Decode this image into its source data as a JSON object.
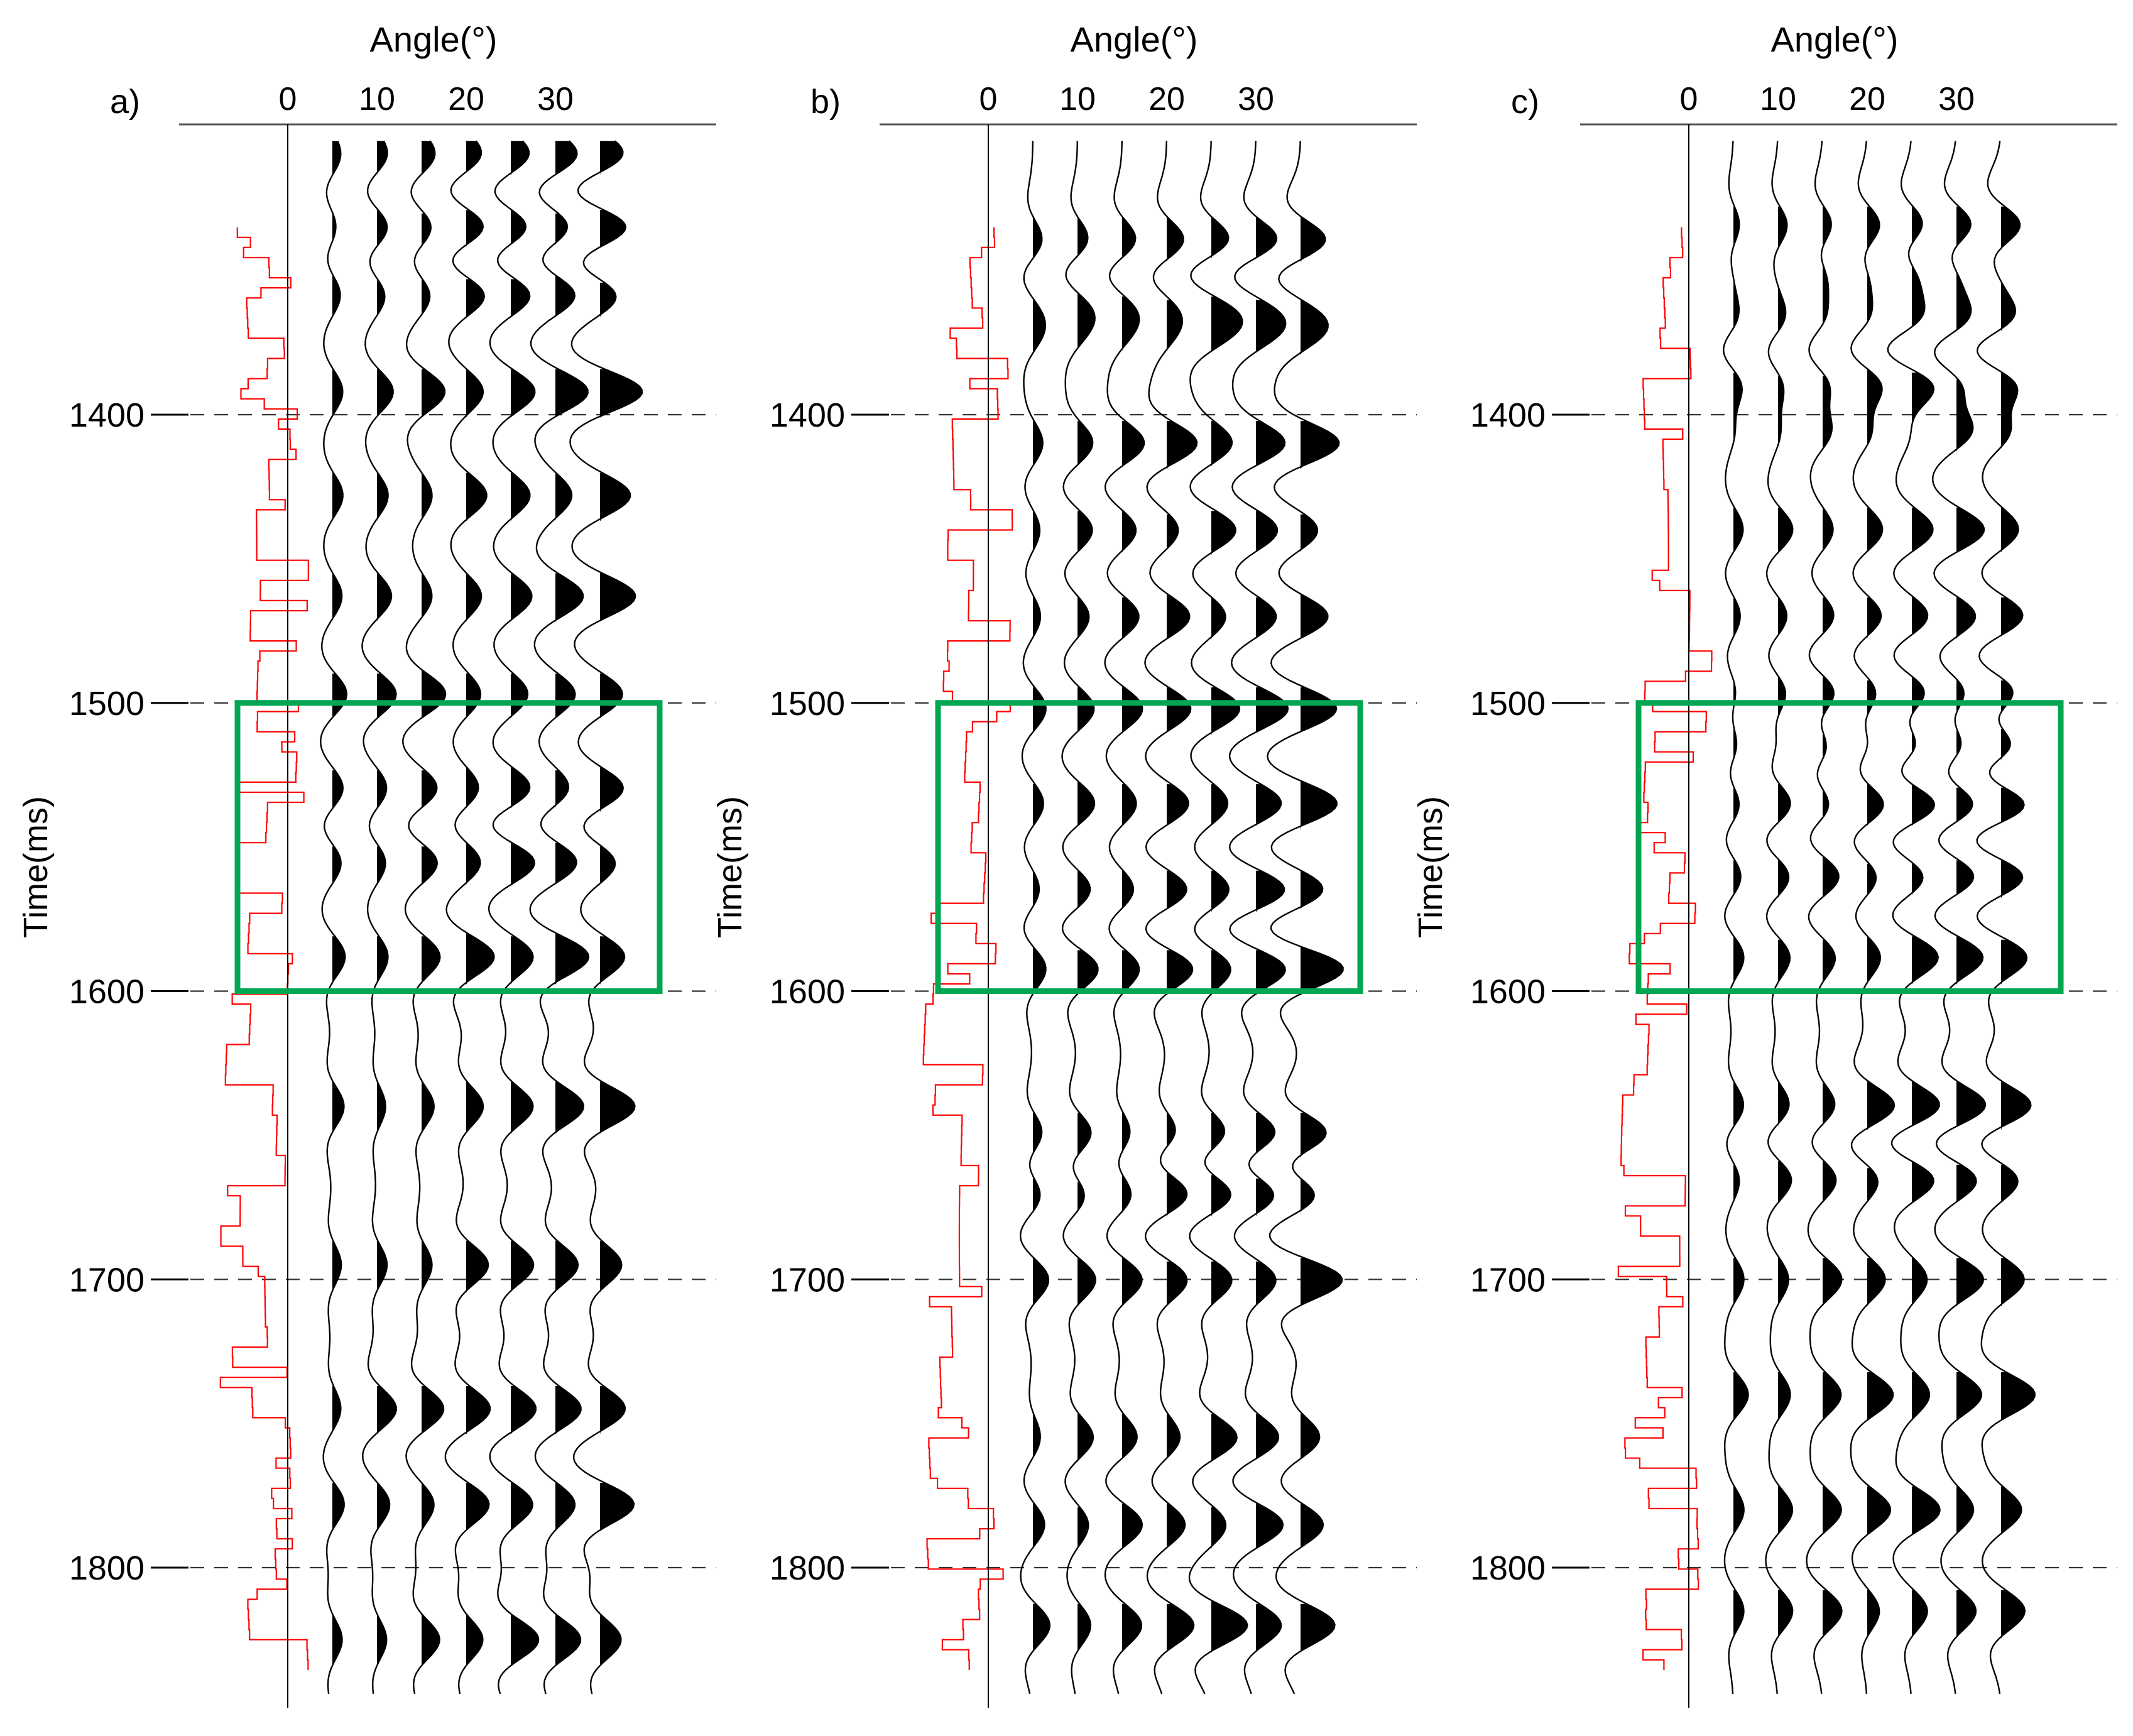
{
  "figure": {
    "panels": [
      {
        "label": "a)",
        "top_title": "Angle(°)",
        "angle_ticks": [
          "0",
          "10",
          "20",
          "30"
        ],
        "y_label": "Time(ms)",
        "time_ticks": [
          "1400",
          "1500",
          "1600",
          "1700",
          "1800"
        ]
      },
      {
        "label": "b)",
        "top_title": "Angle(°)",
        "angle_ticks": [
          "0",
          "10",
          "20",
          "30"
        ],
        "y_label": "Time(ms)",
        "time_ticks": [
          "1400",
          "1500",
          "1600",
          "1700",
          "1800"
        ]
      },
      {
        "label": "c)",
        "top_title": "Angle(°)",
        "angle_ticks": [
          "0",
          "10",
          "20",
          "30"
        ],
        "y_label": "Time(ms)",
        "time_ticks": [
          "1400",
          "1500",
          "1600",
          "1700",
          "1800"
        ]
      }
    ]
  },
  "chart_data": [
    {
      "type": "wiggle",
      "panel": "a)",
      "x_axis": {
        "title": "Angle(°)",
        "ticks": [
          0,
          10,
          20,
          30
        ],
        "traces_at_angle": [
          0,
          5,
          10,
          15,
          20,
          25,
          30,
          35
        ]
      },
      "y_axis": {
        "title": "Time(ms)",
        "ticks": [
          1400,
          1500,
          1600,
          1700,
          1800
        ],
        "range": [
          1300,
          1850
        ],
        "reversed": true
      },
      "grid": "dashed at 1400, 1500, 1600, 1700, 1800",
      "reflectivity_curve_color": "#ff0000",
      "highlight_box": {
        "time_range": [
          1500,
          1600
        ],
        "angle_range": [
          -5,
          40
        ],
        "color": "#00a651"
      },
      "events_ms": [
        1310,
        1335,
        1358,
        1392,
        1428,
        1463,
        1497,
        1530,
        1555,
        1588,
        1640,
        1695,
        1745,
        1778,
        1825
      ],
      "event_amplitude_by_angle": "increasing with angle",
      "polarity_fill": "positive lobes filled black"
    },
    {
      "type": "wiggle",
      "panel": "b)",
      "x_axis": {
        "title": "Angle(°)",
        "ticks": [
          0,
          10,
          20,
          30
        ],
        "traces_at_angle": [
          0,
          5,
          10,
          15,
          20,
          25,
          30,
          35
        ]
      },
      "y_axis": {
        "title": "Time(ms)",
        "ticks": [
          1400,
          1500,
          1600,
          1700,
          1800
        ],
        "range": [
          1300,
          1850
        ],
        "reversed": true
      },
      "grid": "dashed at 1400, 1500, 1600, 1700, 1800",
      "reflectivity_curve_color": "#ff0000",
      "highlight_box": {
        "time_range": [
          1500,
          1600
        ],
        "angle_range": [
          -5,
          40
        ],
        "color": "#00a651"
      },
      "events_ms": [
        1340,
        1362,
        1372,
        1410,
        1440,
        1470,
        1502,
        1535,
        1565,
        1592,
        1650,
        1670,
        1700,
        1755,
        1785,
        1820
      ],
      "event_amplitude_by_angle": "increasing with angle",
      "polarity_fill": "positive lobes filled black"
    },
    {
      "type": "wiggle",
      "panel": "c)",
      "x_axis": {
        "title": "Angle(°)",
        "ticks": [
          0,
          10,
          20,
          30
        ],
        "traces_at_angle": [
          0,
          5,
          10,
          15,
          20,
          25,
          30,
          35
        ]
      },
      "y_axis": {
        "title": "Time(ms)",
        "ticks": [
          1400,
          1500,
          1600,
          1700,
          1800
        ],
        "range": [
          1300,
          1850
        ],
        "reversed": true
      },
      "grid": "dashed at 1400, 1500, 1600, 1700, 1800",
      "reflectivity_curve_color": "#ff0000",
      "highlight_box": {
        "time_range": [
          1500,
          1600
        ],
        "angle_range": [
          -5,
          40
        ],
        "color": "#00a651"
      },
      "events_ms": [
        1335,
        1352,
        1366,
        1390,
        1405,
        1440,
        1470,
        1497,
        1515,
        1535,
        1560,
        1588,
        1640,
        1665,
        1700,
        1740,
        1780,
        1815
      ],
      "event_amplitude_by_angle": "increasing with angle",
      "polarity_fill": "positive lobes filled black"
    }
  ]
}
